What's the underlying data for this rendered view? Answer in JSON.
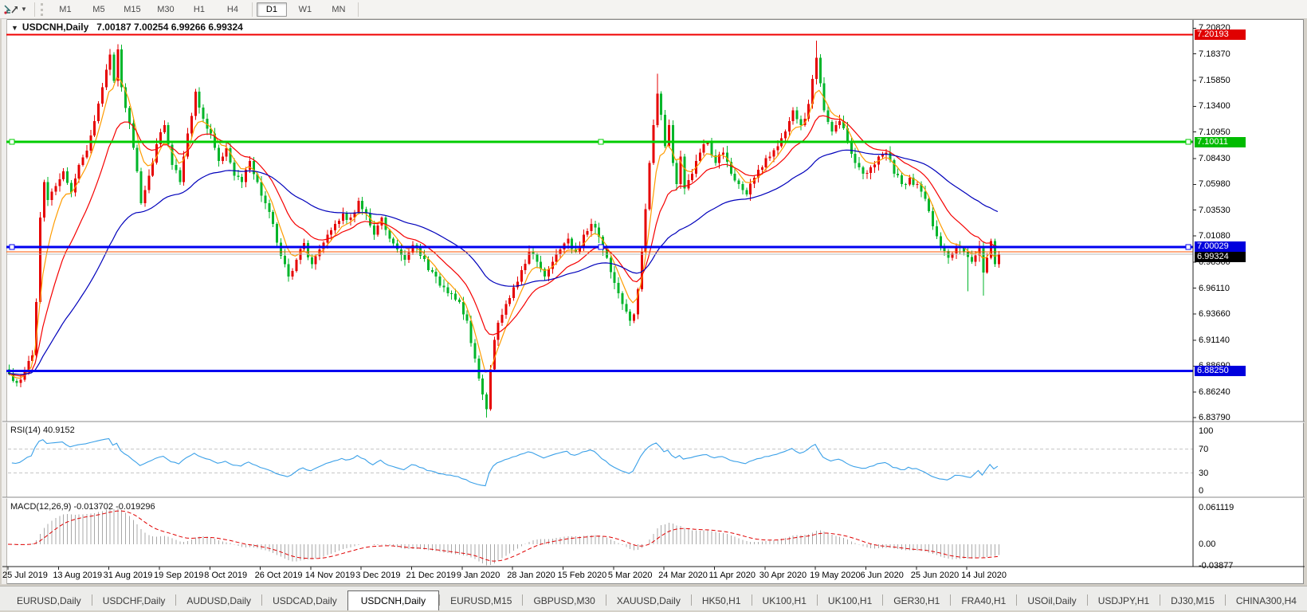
{
  "toolbar": {
    "timeframes": [
      "M1",
      "M5",
      "M15",
      "M30",
      "H1",
      "H4",
      "D1",
      "W1",
      "MN"
    ],
    "active_timeframe": "D1",
    "separator_before": "D1",
    "icon": "chart-tools-icon"
  },
  "chart": {
    "title_symbol": "USDCNH,Daily",
    "title_ohlc": "7.00187 7.00254 6.99266 6.99324",
    "rsi_label": "RSI(14) 40.9152",
    "macd_label": "MACD(12,26,9) -0.013702 -0.019296",
    "collapse_arrow": "▼"
  },
  "chart_data": {
    "type": "candlestick+indicators",
    "symbol": "USDCNH",
    "timeframe": "Daily",
    "ohlc_display": {
      "open": "7.00187",
      "high": "7.00254",
      "low": "6.99266",
      "close": "6.99324"
    },
    "up_color": "#e60000",
    "down_color": "#00b52a",
    "bars": 256,
    "price_range_top": 7.21,
    "price_range_bottom": 6.835,
    "close_anchors": [
      [
        0,
        6.88
      ],
      [
        2,
        6.871
      ],
      [
        4,
        6.882
      ],
      [
        6,
        6.897
      ],
      [
        7,
        6.948
      ],
      [
        8,
        7.028
      ],
      [
        9,
        7.062
      ],
      [
        10,
        7.045
      ],
      [
        12,
        7.058
      ],
      [
        14,
        7.072
      ],
      [
        16,
        7.052
      ],
      [
        18,
        7.078
      ],
      [
        20,
        7.092
      ],
      [
        22,
        7.12
      ],
      [
        24,
        7.152
      ],
      [
        26,
        7.183
      ],
      [
        27,
        7.158
      ],
      [
        28,
        7.188
      ],
      [
        29,
        7.152
      ],
      [
        31,
        7.118
      ],
      [
        33,
        7.072
      ],
      [
        34,
        7.042
      ],
      [
        36,
        7.068
      ],
      [
        38,
        7.098
      ],
      [
        40,
        7.116
      ],
      [
        42,
        7.078
      ],
      [
        44,
        7.062
      ],
      [
        46,
        7.108
      ],
      [
        48,
        7.148
      ],
      [
        50,
        7.122
      ],
      [
        52,
        7.108
      ],
      [
        54,
        7.082
      ],
      [
        56,
        7.094
      ],
      [
        58,
        7.068
      ],
      [
        60,
        7.062
      ],
      [
        62,
        7.082
      ],
      [
        64,
        7.062
      ],
      [
        66,
        7.042
      ],
      [
        68,
        7.022
      ],
      [
        70,
        6.992
      ],
      [
        72,
        6.972
      ],
      [
        74,
        6.988
      ],
      [
        76,
        7.004
      ],
      [
        78,
        6.984
      ],
      [
        80,
        6.998
      ],
      [
        82,
        7.012
      ],
      [
        84,
        7.022
      ],
      [
        86,
        7.032
      ],
      [
        88,
        7.028
      ],
      [
        90,
        7.044
      ],
      [
        92,
        7.032
      ],
      [
        94,
        7.012
      ],
      [
        96,
        7.028
      ],
      [
        98,
        7.008
      ],
      [
        100,
        6.998
      ],
      [
        102,
        6.988
      ],
      [
        104,
        7.002
      ],
      [
        106,
        6.992
      ],
      [
        108,
        6.978
      ],
      [
        110,
        6.972
      ],
      [
        112,
        6.962
      ],
      [
        114,
        6.956
      ],
      [
        116,
        6.948
      ],
      [
        118,
        6.93
      ],
      [
        120,
        6.894
      ],
      [
        122,
        6.86
      ],
      [
        123,
        6.846
      ],
      [
        124,
        6.884
      ],
      [
        125,
        6.912
      ],
      [
        126,
        6.928
      ],
      [
        128,
        6.946
      ],
      [
        130,
        6.962
      ],
      [
        132,
        6.978
      ],
      [
        134,
        6.996
      ],
      [
        136,
        6.986
      ],
      [
        138,
        6.972
      ],
      [
        140,
        6.986
      ],
      [
        142,
        6.998
      ],
      [
        144,
        7.008
      ],
      [
        146,
        6.996
      ],
      [
        148,
        7.012
      ],
      [
        150,
        7.022
      ],
      [
        152,
        7.01
      ],
      [
        154,
        6.99
      ],
      [
        156,
        6.966
      ],
      [
        158,
        6.946
      ],
      [
        160,
        6.93
      ],
      [
        161,
        6.936
      ],
      [
        162,
        6.96
      ],
      [
        163,
        6.996
      ],
      [
        164,
        7.036
      ],
      [
        165,
        7.08
      ],
      [
        166,
        7.116
      ],
      [
        167,
        7.146
      ],
      [
        168,
        7.126
      ],
      [
        169,
        7.096
      ],
      [
        170,
        7.116
      ],
      [
        171,
        7.08
      ],
      [
        172,
        7.06
      ],
      [
        173,
        7.086
      ],
      [
        174,
        7.056
      ],
      [
        176,
        7.07
      ],
      [
        178,
        7.09
      ],
      [
        180,
        7.1
      ],
      [
        182,
        7.08
      ],
      [
        184,
        7.09
      ],
      [
        186,
        7.07
      ],
      [
        188,
        7.06
      ],
      [
        190,
        7.05
      ],
      [
        192,
        7.066
      ],
      [
        194,
        7.076
      ],
      [
        196,
        7.086
      ],
      [
        198,
        7.096
      ],
      [
        200,
        7.11
      ],
      [
        202,
        7.13
      ],
      [
        204,
        7.116
      ],
      [
        206,
        7.136
      ],
      [
        207,
        7.16
      ],
      [
        208,
        7.18
      ],
      [
        209,
        7.156
      ],
      [
        210,
        7.13
      ],
      [
        212,
        7.11
      ],
      [
        214,
        7.12
      ],
      [
        216,
        7.1
      ],
      [
        218,
        7.08
      ],
      [
        220,
        7.07
      ],
      [
        222,
        7.076
      ],
      [
        224,
        7.086
      ],
      [
        226,
        7.09
      ],
      [
        228,
        7.07
      ],
      [
        230,
        7.06
      ],
      [
        232,
        7.066
      ],
      [
        234,
        7.06
      ],
      [
        236,
        7.046
      ],
      [
        238,
        7.02
      ],
      [
        240,
        7.0
      ],
      [
        242,
        6.99
      ],
      [
        244,
        7.0
      ],
      [
        246,
        6.996
      ],
      [
        248,
        6.986
      ],
      [
        250,
        7.0
      ],
      [
        251,
        6.976
      ],
      [
        252,
        6.99
      ],
      [
        253,
        7.006
      ],
      [
        254,
        6.984
      ],
      [
        255,
        6.9932
      ]
    ],
    "wick_overrides": [
      {
        "bar": 28,
        "high": 7.193
      },
      {
        "bar": 123,
        "low": 6.8379
      },
      {
        "bar": 167,
        "high": 7.165
      },
      {
        "bar": 208,
        "high": 7.1965
      },
      {
        "bar": 247,
        "low": 6.958
      },
      {
        "bar": 251,
        "low": 6.954
      }
    ],
    "moving_averages": [
      {
        "period": 6,
        "color": "#ff9c00",
        "name": "fast-ma"
      },
      {
        "period": 16,
        "color": "#f50000",
        "name": "medium-ma"
      },
      {
        "period": 48,
        "color": "#0000bb",
        "name": "slow-ma"
      }
    ],
    "rsi": {
      "period": 14,
      "value": "40.9152",
      "color": "#3aa0e8",
      "levels": [
        70,
        30
      ],
      "ticks": [
        {
          "v": 100,
          "label": "100"
        },
        {
          "v": 70,
          "label": "70"
        },
        {
          "v": 30,
          "label": "30"
        },
        {
          "v": 0,
          "label": "0"
        }
      ]
    },
    "macd": {
      "fast": 12,
      "slow": 26,
      "signal": 9,
      "values": "-0.013702 -0.019296",
      "hist_color": "#a8a8a8",
      "signal_color": "#e00000",
      "ticks": [
        {
          "v": 0.061119,
          "label": "0.061119"
        },
        {
          "v": 0,
          "label": "0.00"
        },
        {
          "v": -0.03877,
          "label": "-0.03877"
        }
      ]
    },
    "price_ticks": [
      "7.20820",
      "7.18370",
      "7.15850",
      "7.13400",
      "7.10950",
      "7.08430",
      "7.05980",
      "7.03530",
      "7.01080",
      "6.98560",
      "6.96110",
      "6.93660",
      "6.91140",
      "6.88690",
      "6.86240",
      "6.83790"
    ],
    "price_lines": [
      {
        "price": 7.20193,
        "color": "#f00000",
        "width": 2,
        "label": "7.20193",
        "label_bg": "#e00000",
        "handles": false
      },
      {
        "price": 7.10011,
        "color": "#00cc00",
        "width": 3,
        "label": "7.10011",
        "label_bg": "#00bb00",
        "handles": true
      },
      {
        "price": 7.00029,
        "color": "#0000f0",
        "width": 3,
        "label": "7.00029",
        "label_bg": "#0000dd",
        "handles": true
      },
      {
        "price": 6.9956,
        "color": "#ff5400",
        "width": 1,
        "label": null,
        "handles": false
      },
      {
        "price": 6.99324,
        "color": "#b8b8b8",
        "width": 1,
        "label": "6.99324",
        "label_bg": "#000000",
        "handles": false
      },
      {
        "price": 6.8825,
        "color": "#0000f0",
        "width": 3,
        "label": "6.88250",
        "label_bg": "#0000dd",
        "handles": false
      }
    ],
    "dates": [
      "25 Jul 2019",
      "13 Aug 2019",
      "31 Aug 2019",
      "19 Sep 2019",
      "8 Oct 2019",
      "26 Oct 2019",
      "14 Nov 2019",
      "3 Dec 2019",
      "21 Dec 2019",
      "9 Jan 2020",
      "28 Jan 2020",
      "15 Feb 2020",
      "5 Mar 2020",
      "24 Mar 2020",
      "11 Apr 2020",
      "30 Apr 2020",
      "19 May 2020",
      "6 Jun 2020",
      "25 Jun 2020",
      "14 Jul 2020"
    ]
  },
  "tabs": {
    "items": [
      "EURUSD,Daily",
      "USDCHF,Daily",
      "AUDUSD,Daily",
      "USDCAD,Daily",
      "USDCNH,Daily",
      "EURUSD,M15",
      "GBPUSD,M30",
      "XAUUSD,Daily",
      "HK50,H1",
      "UK100,H1",
      "UK100,H1",
      "GER30,H1",
      "FRA40,H1",
      "USOil,Daily",
      "USDJPY,H1",
      "DJ30,M15",
      "CHINA300,H4"
    ],
    "active_index": 4,
    "scroll_left": "◄",
    "scroll_right": "►"
  }
}
